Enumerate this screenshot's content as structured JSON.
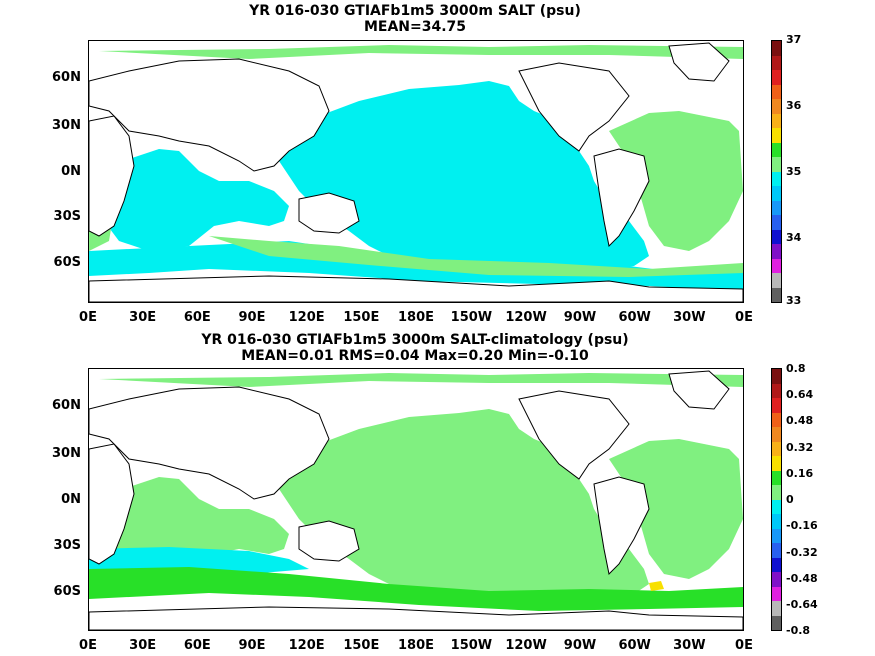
{
  "chart_data": [
    {
      "type": "heatmap",
      "title": "YR 016-030 GTIAFb1m5 3000m SALT (psu)",
      "subtitle": "MEAN=34.75",
      "xticks": [
        "0E",
        "30E",
        "60E",
        "90E",
        "120E",
        "150E",
        "180E",
        "150W",
        "120W",
        "90W",
        "60W",
        "30W",
        "0E"
      ],
      "yticks": [
        "60N",
        "30N",
        "0N",
        "30S",
        "60S"
      ],
      "colorbar": {
        "labels": [
          "37",
          "36",
          "35",
          "34",
          "33"
        ],
        "colors": [
          "#7a1010",
          "#b01818",
          "#e02020",
          "#f06018",
          "#f08820",
          "#f8b018",
          "#f8e000",
          "#28e028",
          "#80f080",
          "#00f0f0",
          "#00c8f8",
          "#1898f8",
          "#2860f0",
          "#1010d0",
          "#8010c8",
          "#e020e0",
          "#b8b8b8",
          "#606060"
        ]
      },
      "dominant_color": "#00f0f0"
    },
    {
      "type": "heatmap",
      "title": "YR 016-030 GTIAFb1m5 3000m SALT-climatology (psu)",
      "subtitle": "MEAN=0.01   RMS=0.04   Max=0.20   Min=-0.10",
      "xticks": [
        "0E",
        "30E",
        "60E",
        "90E",
        "120E",
        "150E",
        "180E",
        "150W",
        "120W",
        "90W",
        "60W",
        "30W",
        "0E"
      ],
      "yticks": [
        "60N",
        "30N",
        "0N",
        "30S",
        "60S"
      ],
      "colorbar": {
        "labels": [
          "0.8",
          "0.64",
          "0.48",
          "0.32",
          "0.16",
          "0",
          "-0.16",
          "-0.32",
          "-0.48",
          "-0.64",
          "-0.8"
        ],
        "colors": [
          "#7a1010",
          "#b01818",
          "#e02020",
          "#f06018",
          "#f08820",
          "#f8b018",
          "#f8e000",
          "#28e028",
          "#80f080",
          "#00f0f0",
          "#00c8f8",
          "#1898f8",
          "#2860f0",
          "#1010d0",
          "#8010c8",
          "#e020e0",
          "#b8b8b8",
          "#606060"
        ]
      },
      "dominant_color": "#28e028"
    }
  ]
}
